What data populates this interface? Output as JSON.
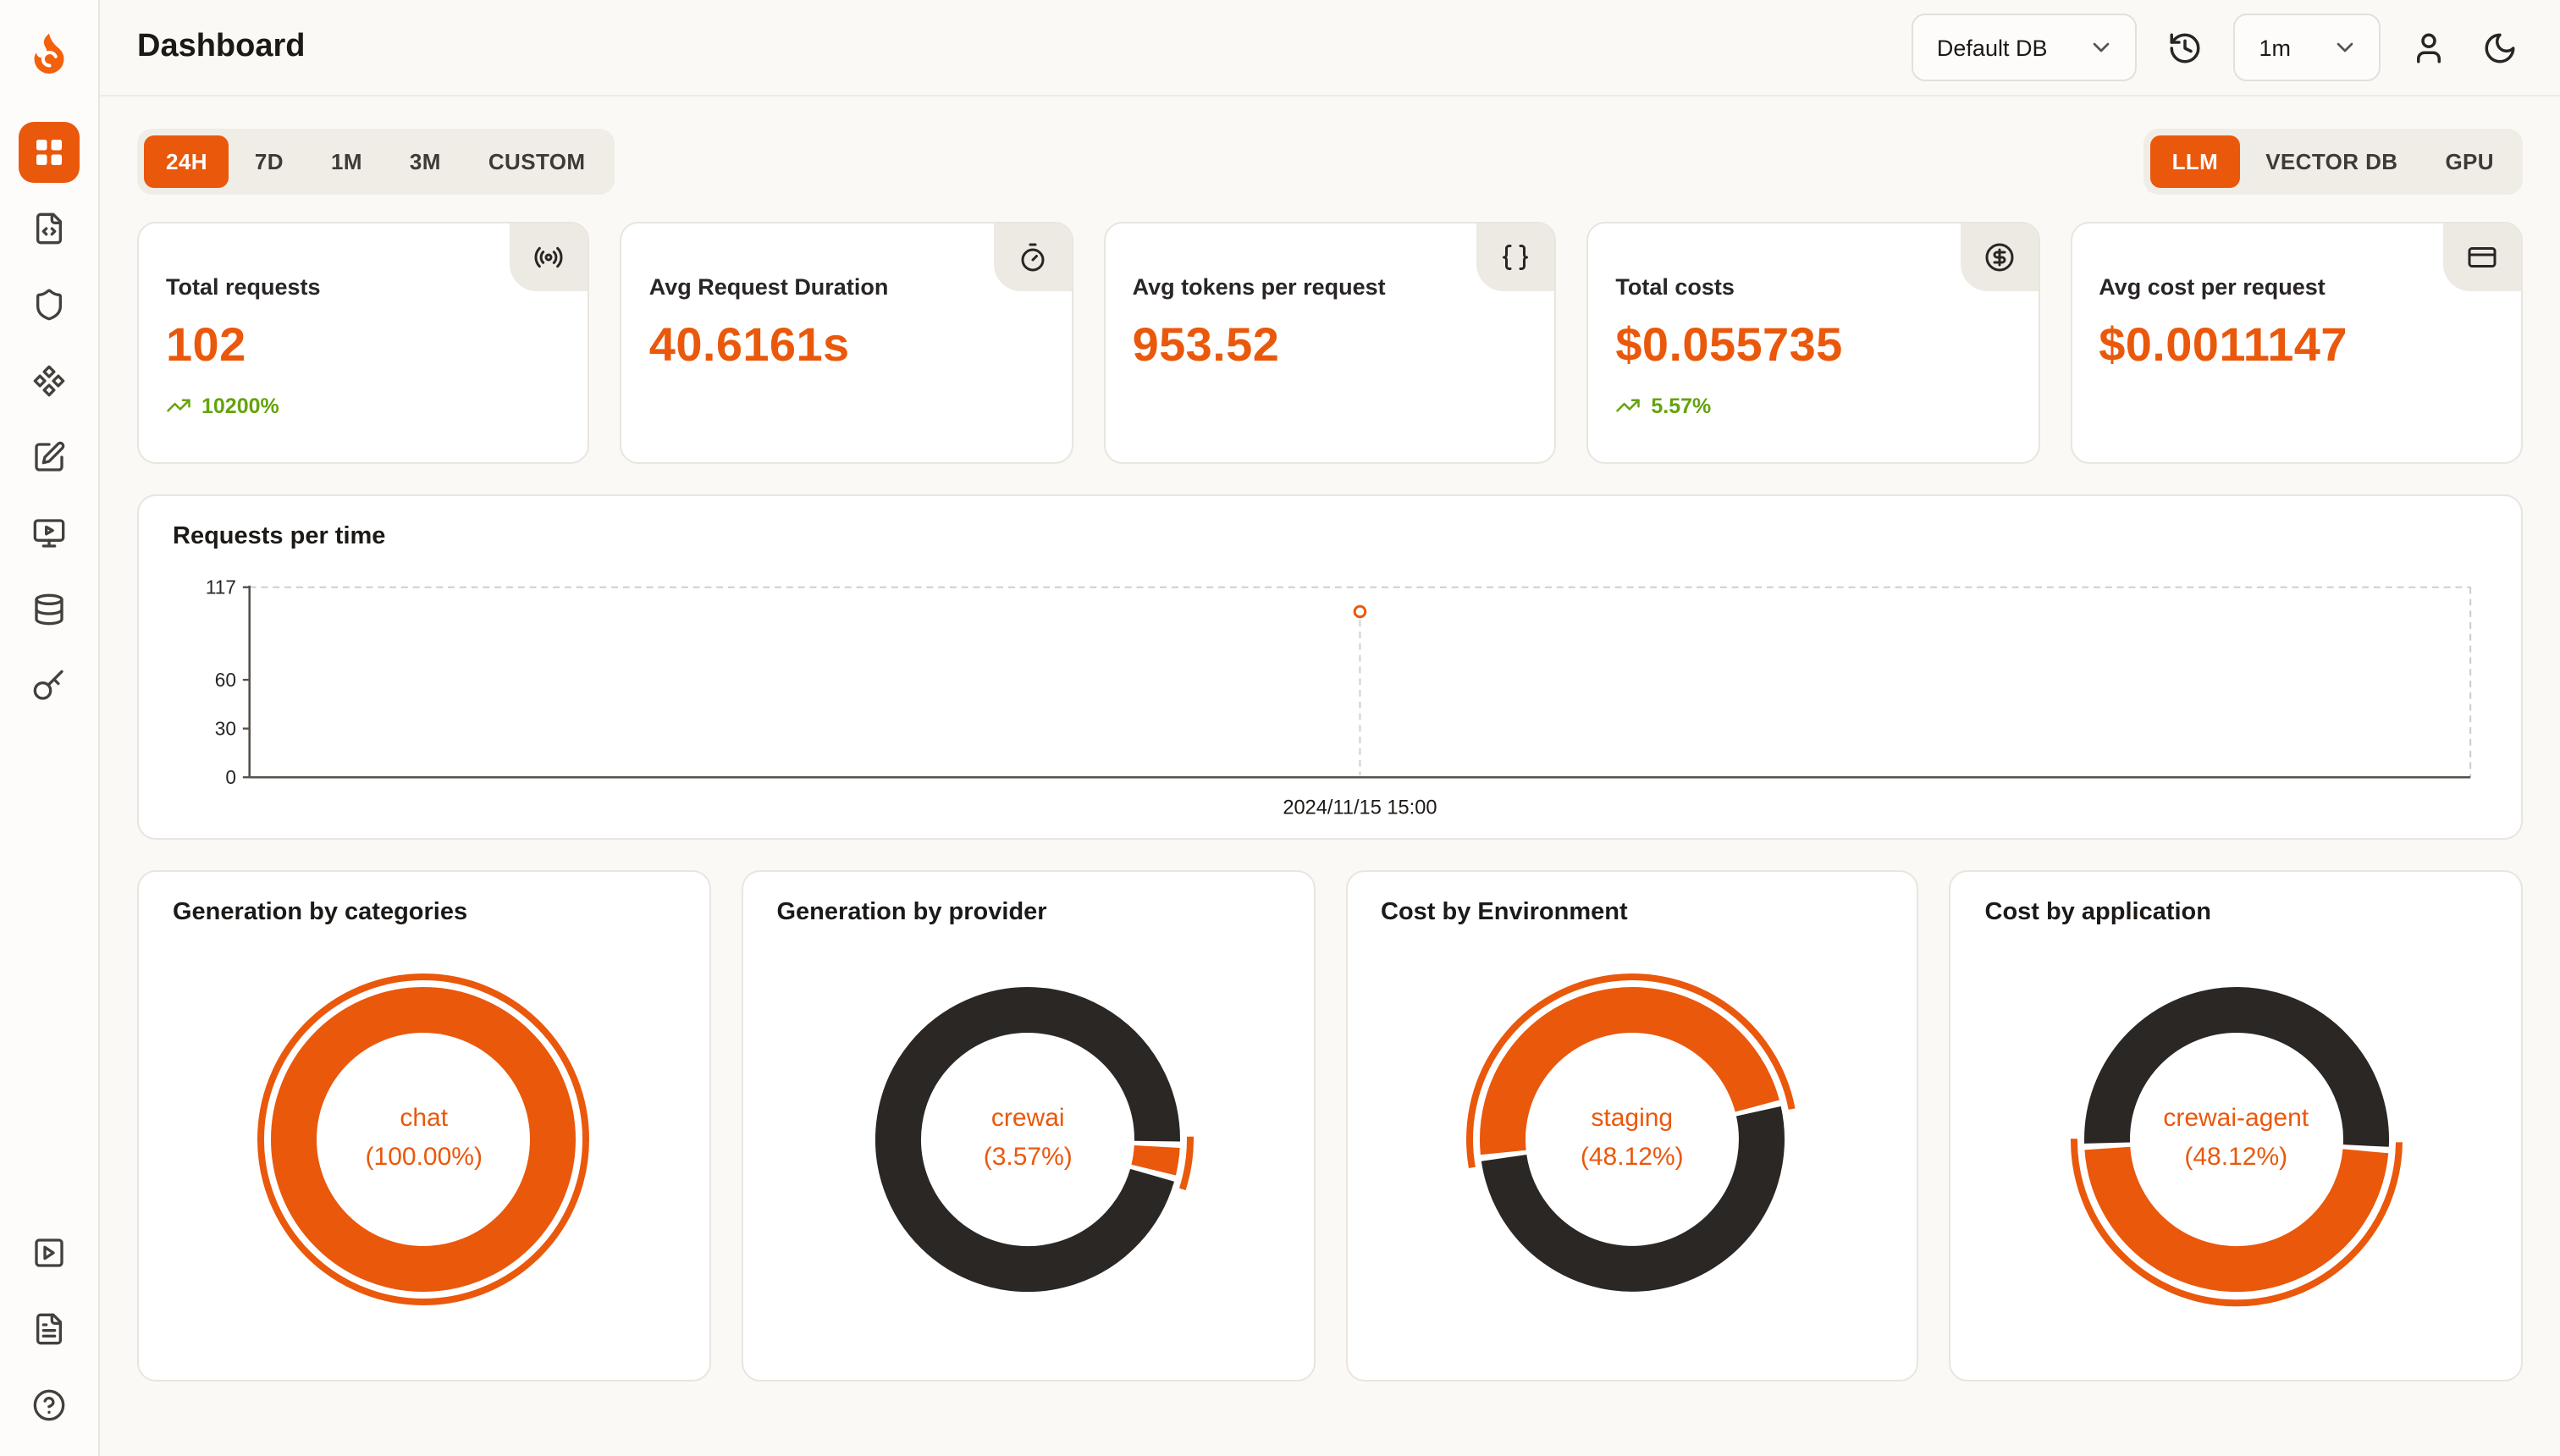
{
  "colors": {
    "accent": "#EA580C",
    "dark_slice": "#2B2724",
    "trend_green": "#65A30D",
    "page_background": "#FAF9F6"
  },
  "sidebar": {
    "items": [
      {
        "name": "dashboard",
        "icon": "layout-grid",
        "active": true
      },
      {
        "name": "file-code",
        "icon": "file-code",
        "active": false
      },
      {
        "name": "shield",
        "icon": "shield",
        "active": false
      },
      {
        "name": "component",
        "icon": "component",
        "active": false
      },
      {
        "name": "square-pen",
        "icon": "square-pen",
        "active": false
      },
      {
        "name": "monitor-play",
        "icon": "monitor-play",
        "active": false
      },
      {
        "name": "database",
        "icon": "database",
        "active": false
      },
      {
        "name": "key",
        "icon": "key",
        "active": false
      }
    ],
    "footer_items": [
      {
        "name": "play-square",
        "icon": "play-square"
      },
      {
        "name": "file-text",
        "icon": "file-text"
      },
      {
        "name": "help",
        "icon": "help-circle"
      }
    ]
  },
  "header": {
    "title": "Dashboard",
    "db_select": "Default DB",
    "interval_select": "1m"
  },
  "toolbar": {
    "time_ranges": [
      "24H",
      "7D",
      "1M",
      "3M",
      "CUSTOM"
    ],
    "active_time_range": "24H",
    "views": [
      "LLM",
      "VECTOR DB",
      "GPU"
    ],
    "active_view": "LLM"
  },
  "stats": [
    {
      "label": "Total requests",
      "value": "102",
      "trend": "10200%",
      "icon": "radio"
    },
    {
      "label": "Avg Request Duration",
      "value": "40.6161s",
      "trend": "",
      "icon": "timer"
    },
    {
      "label": "Avg tokens per request",
      "value": "953.52",
      "trend": "",
      "icon": "braces"
    },
    {
      "label": "Total costs",
      "value": "$0.055735",
      "trend": "5.57%",
      "icon": "circle-dollar"
    },
    {
      "label": "Avg cost per request",
      "value": "$0.0011147",
      "trend": "",
      "icon": "credit-card"
    }
  ],
  "chart_data": [
    {
      "type": "line",
      "title": "Requests per time",
      "xlabel": "",
      "ylabel": "",
      "ylim": [
        0,
        117
      ],
      "yticks": [
        117,
        60,
        30,
        0
      ],
      "x": [
        "2024/11/15 15:00"
      ],
      "series": [
        {
          "name": "requests",
          "values": [
            102
          ]
        }
      ],
      "point_x_fraction": 0.5,
      "grid": "dashed-frame",
      "legend": "none"
    },
    {
      "type": "donut",
      "title": "Generation by categories",
      "highlight": {
        "name": "chat",
        "percent_label": "(100.00%)"
      },
      "slices": [
        {
          "name": "chat",
          "value": 100.0,
          "color": "accent",
          "start_angle": 0
        }
      ]
    },
    {
      "type": "donut",
      "title": "Generation by provider",
      "highlight": {
        "name": "crewai",
        "percent_label": "(3.57%)"
      },
      "slices": [
        {
          "name": "crewai",
          "value": 3.57,
          "color": "accent",
          "start_angle": 92
        },
        {
          "name": "other",
          "value": 96.43,
          "color": "dark"
        }
      ]
    },
    {
      "type": "donut",
      "title": "Cost by Environment",
      "highlight": {
        "name": "staging",
        "percent_label": "(48.12%)"
      },
      "slices": [
        {
          "name": "staging",
          "value": 48.12,
          "color": "accent",
          "start_angle": 263
        },
        {
          "name": "other",
          "value": 51.88,
          "color": "dark"
        }
      ]
    },
    {
      "type": "donut",
      "title": "Cost by application",
      "highlight": {
        "name": "crewai-agent",
        "percent_label": "(48.12%)"
      },
      "slices": [
        {
          "name": "crewai-agent",
          "value": 48.12,
          "color": "accent",
          "start_angle": 94
        },
        {
          "name": "other",
          "value": 51.88,
          "color": "dark"
        }
      ]
    }
  ]
}
